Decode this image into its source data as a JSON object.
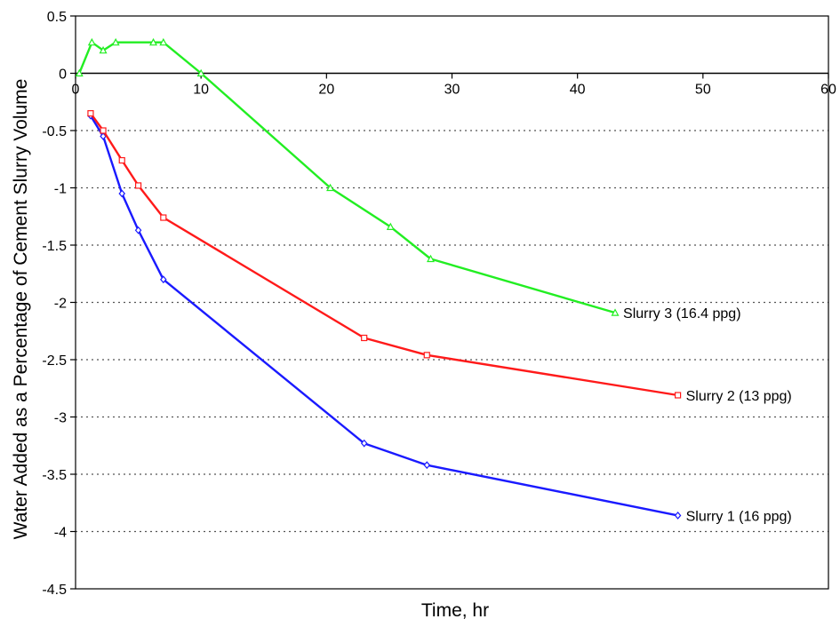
{
  "chart_data": {
    "type": "line",
    "title": "",
    "xlabel": "Time, hr",
    "ylabel": "Water Added as a Percentage of Cement Slurry Volume",
    "xlim": [
      0,
      60
    ],
    "ylim": [
      -4.5,
      0.5
    ],
    "xticks": [
      0,
      10,
      20,
      30,
      40,
      50,
      60
    ],
    "yticks": [
      0.5,
      0,
      -0.5,
      -1,
      -1.5,
      -2,
      -2.5,
      -3,
      -3.5,
      -4,
      -4.5
    ],
    "xtick_labels": [
      "0",
      "10",
      "20",
      "30",
      "40",
      "50",
      "60"
    ],
    "ytick_labels": [
      "0.5",
      "0",
      "-0.5",
      "-1",
      "-1.5",
      "-2",
      "-2.5",
      "-3",
      "-3.5",
      "-4",
      "-4.5"
    ],
    "grid": {
      "horizontal_dotted": true,
      "vertical": false
    },
    "legend": "inline labels at series ends",
    "series": [
      {
        "name": "Slurry 1 (16 ppg)",
        "color": "#1a1aff",
        "marker": "diamond",
        "x": [
          1.2,
          2.2,
          3.7,
          5.0,
          7.0,
          23.0,
          28.0,
          48.0
        ],
        "y": [
          -0.37,
          -0.55,
          -1.05,
          -1.37,
          -1.8,
          -3.23,
          -3.42,
          -3.86
        ]
      },
      {
        "name": "Slurry 2 (13 ppg)",
        "color": "#ff1a1a",
        "marker": "square",
        "x": [
          1.2,
          2.2,
          3.7,
          5.0,
          7.0,
          23.0,
          28.0,
          48.0
        ],
        "y": [
          -0.35,
          -0.5,
          -0.76,
          -0.98,
          -1.26,
          -2.31,
          -2.46,
          -2.81
        ]
      },
      {
        "name": "Slurry 3 (16.4 ppg)",
        "color": "#22ee22",
        "marker": "triangle",
        "x": [
          0.3,
          1.3,
          2.2,
          3.2,
          6.2,
          7.0,
          10.0,
          20.3,
          25.1,
          28.3,
          43.0
        ],
        "y": [
          0.0,
          0.27,
          0.2,
          0.27,
          0.27,
          0.27,
          0.0,
          -1.0,
          -1.34,
          -1.62,
          -2.09
        ]
      }
    ]
  }
}
